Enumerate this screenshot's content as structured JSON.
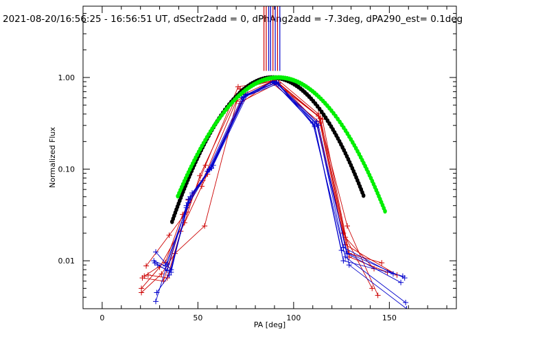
{
  "chart_data": {
    "type": "line",
    "title": "2021-08-20/16:56:25 - 16:56:51 UT, dSectr2add = 0, dPhAng2add = -7.3deg, dPA290_est=  0.1deg",
    "xlabel": "PA [deg]",
    "ylabel": "Normalized Flux",
    "xlim": [
      -10,
      185
    ],
    "ylim": [
      0.003,
      6
    ],
    "y_scale": "log",
    "grid": false,
    "x_ticks": [
      0,
      50,
      100,
      150
    ],
    "x_tick_labels": [
      "0",
      "50",
      "100",
      "150"
    ],
    "y_ticks": [
      0.01,
      0.1,
      1.0
    ],
    "y_tick_labels": [
      "0.01",
      "0.10",
      "1.00"
    ],
    "colors": {
      "red": "#cc0000",
      "blue": "#0000cc",
      "black": "#000000",
      "green": "#00ee00"
    },
    "model_curves": [
      {
        "color": "black",
        "center": 89,
        "sigma": 19.5,
        "x_range": [
          36.5,
          136.5
        ]
      },
      {
        "color": "green",
        "center": 92,
        "sigma": 21.5,
        "x_range": [
          39.5,
          148
        ]
      }
    ],
    "center_lines": [
      {
        "color": "red",
        "x": 84.5
      },
      {
        "color": "red",
        "x": 85.7
      },
      {
        "color": "blue",
        "x": 87.0
      },
      {
        "color": "blue",
        "x": 88.0
      },
      {
        "color": "red",
        "x": 89.2
      },
      {
        "color": "blue",
        "x": 90.4
      },
      {
        "color": "red",
        "x": 91.6
      },
      {
        "color": "blue",
        "x": 92.8
      }
    ],
    "center_line_ylim": [
      1.18,
      6
    ],
    "series": [
      {
        "color": "red",
        "x": [
          20.5,
          31,
          38,
          53.5,
          72,
          90,
          114,
          127,
          142
        ],
        "y": [
          0.0045,
          0.0072,
          0.012,
          0.024,
          0.75,
          0.93,
          0.36,
          0.018,
          0.0082
        ]
      },
      {
        "color": "red",
        "x": [
          22,
          33,
          42,
          52.5,
          70,
          91,
          113,
          128,
          144
        ],
        "y": [
          0.0068,
          0.0096,
          0.032,
          0.075,
          0.55,
          0.97,
          0.4,
          0.024,
          0.0042
        ]
      },
      {
        "color": "red",
        "x": [
          23,
          35,
          44,
          54,
          71,
          89,
          115,
          129,
          146
        ],
        "y": [
          0.0088,
          0.019,
          0.034,
          0.11,
          0.79,
          0.92,
          0.35,
          0.012,
          0.0095
        ]
      },
      {
        "color": "red",
        "x": [
          21,
          32,
          45,
          55,
          73,
          92,
          112,
          126,
          141
        ],
        "y": [
          0.0065,
          0.006,
          0.046,
          0.088,
          0.55,
          0.88,
          0.33,
          0.02,
          0.005
        ]
      },
      {
        "color": "red",
        "x": [
          20.5,
          30,
          43,
          51,
          70,
          88,
          114,
          129,
          149
        ],
        "y": [
          0.005,
          0.0085,
          0.026,
          0.085,
          0.6,
          0.9,
          0.32,
          0.011,
          0.0075
        ]
      },
      {
        "color": "red",
        "x": [
          24,
          34,
          41,
          52,
          72,
          90,
          113,
          127,
          154
        ],
        "y": [
          0.007,
          0.0065,
          0.021,
          0.065,
          0.52,
          0.95,
          0.38,
          0.015,
          0.007
        ]
      },
      {
        "color": "blue",
        "x": [
          27.5,
          34,
          44,
          56,
          74,
          91,
          112,
          126,
          152
        ],
        "y": [
          0.0095,
          0.0078,
          0.04,
          0.1,
          0.62,
          0.88,
          0.33,
          0.014,
          0.0072
        ]
      },
      {
        "color": "blue",
        "x": [
          28,
          36,
          46,
          57,
          75,
          90,
          111,
          125,
          158
        ],
        "y": [
          0.0125,
          0.008,
          0.05,
          0.105,
          0.65,
          0.87,
          0.3,
          0.013,
          0.0065
        ]
      },
      {
        "color": "blue",
        "x": [
          28.5,
          35,
          45,
          55,
          73,
          92,
          110,
          127,
          158.5
        ],
        "y": [
          0.0045,
          0.007,
          0.043,
          0.095,
          0.6,
          0.86,
          0.32,
          0.011,
          0.0035
        ]
      },
      {
        "color": "blue",
        "x": [
          27,
          33,
          47,
          58,
          76,
          89,
          112,
          128,
          156
        ],
        "y": [
          0.01,
          0.0088,
          0.055,
          0.11,
          0.66,
          0.9,
          0.31,
          0.012,
          0.0058
        ]
      },
      {
        "color": "blue",
        "x": [
          28,
          34,
          44,
          56,
          74,
          91,
          111,
          126,
          157
        ],
        "y": [
          0.0036,
          0.0092,
          0.038,
          0.098,
          0.61,
          0.89,
          0.29,
          0.01,
          0.0068
        ]
      },
      {
        "color": "blue",
        "x": [
          29,
          36,
          45,
          57,
          75,
          90,
          113,
          129,
          159
        ],
        "y": [
          0.009,
          0.0075,
          0.047,
          0.102,
          0.64,
          0.91,
          0.3,
          0.009,
          0.003
        ]
      }
    ]
  }
}
